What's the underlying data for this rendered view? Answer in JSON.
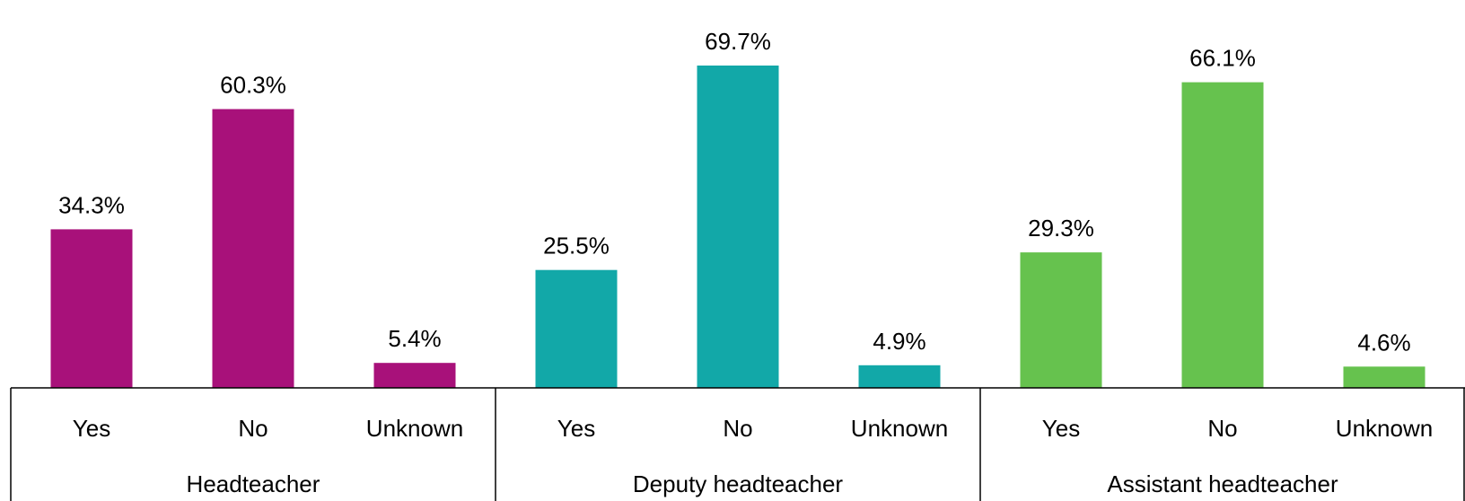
{
  "chart_data": {
    "type": "bar",
    "title": "",
    "xlabel": "",
    "ylabel": "",
    "ylim": [
      0,
      75
    ],
    "grid": false,
    "legend": "none",
    "groups": [
      {
        "name": "Headteacher",
        "color": "#a8117a",
        "categories": [
          "Yes",
          "No",
          "Unknown"
        ],
        "values": [
          34.3,
          60.3,
          5.4
        ],
        "labels": [
          "34.3%",
          "60.3%",
          "5.4%"
        ]
      },
      {
        "name": "Deputy headteacher",
        "color": "#12a8a8",
        "categories": [
          "Yes",
          "No",
          "Unknown"
        ],
        "values": [
          25.5,
          69.7,
          4.9
        ],
        "labels": [
          "25.5%",
          "69.7%",
          "4.9%"
        ]
      },
      {
        "name": "Assistant headteacher",
        "color": "#66c24e",
        "categories": [
          "Yes",
          "No",
          "Unknown"
        ],
        "values": [
          29.3,
          66.1,
          4.6
        ],
        "labels": [
          "29.3%",
          "66.1%",
          "4.6%"
        ]
      }
    ]
  }
}
